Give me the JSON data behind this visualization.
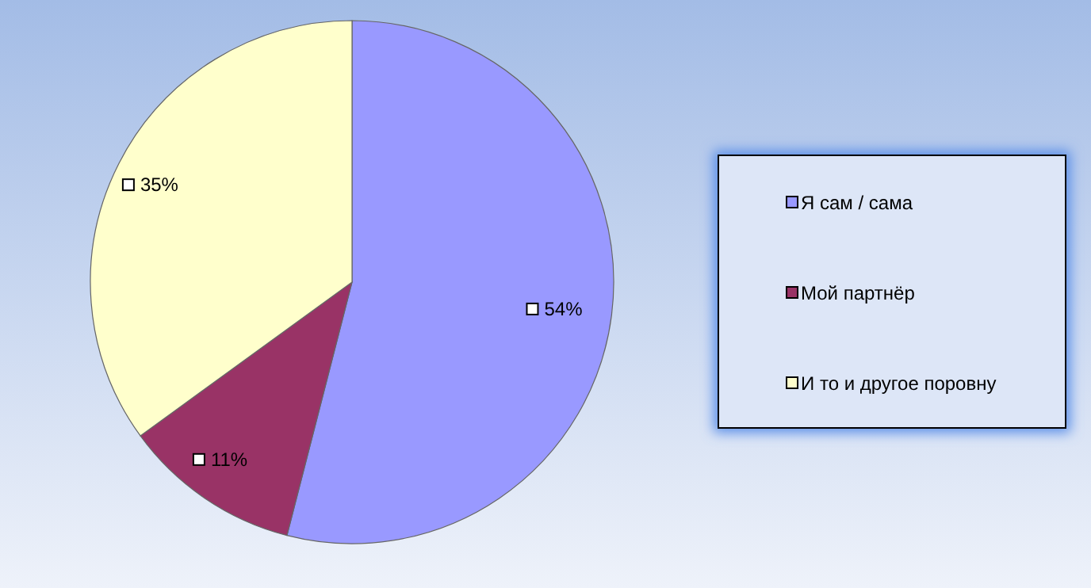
{
  "chart_data": {
    "type": "pie",
    "categories": [
      "Я сам / сама",
      "Мой партнёр",
      "И то и другое поровну"
    ],
    "values": [
      54,
      11,
      35
    ],
    "colors": [
      "#9999ff",
      "#993366",
      "#ffffcc"
    ],
    "value_labels": [
      "54%",
      "11%",
      "35%"
    ],
    "legend": "right"
  }
}
